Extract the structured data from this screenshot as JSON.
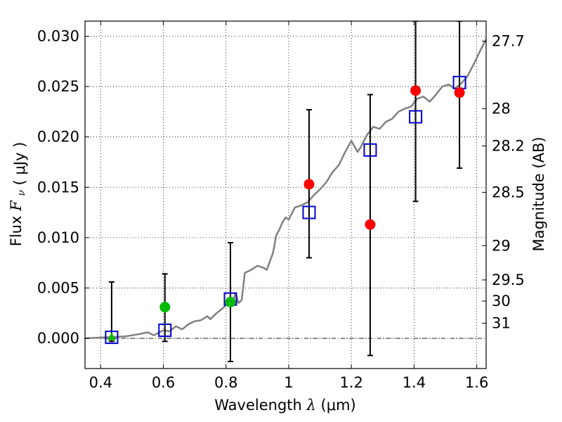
{
  "chart_data": {
    "type": "scatter",
    "xlabel": {
      "prefix": "Wavelength",
      "symbol": "λ",
      "unit": "(μm)"
    },
    "ylabel": {
      "prefix": "Flux",
      "symbol": "F",
      "subscript": "ν",
      "unit": "( μJy )"
    },
    "y2label": "Magnitude (AB)",
    "xlim": [
      0.35,
      1.63
    ],
    "ylim": [
      -0.003,
      0.0315
    ],
    "grid": true,
    "xticks": [
      {
        "value": 0.4,
        "label": "0.4"
      },
      {
        "value": 0.6,
        "label": "0.6"
      },
      {
        "value": 0.8,
        "label": "0.8"
      },
      {
        "value": 1.0,
        "label": "1"
      },
      {
        "value": 1.2,
        "label": "1.2"
      },
      {
        "value": 1.4,
        "label": "1.4"
      },
      {
        "value": 1.6,
        "label": "1.6"
      }
    ],
    "yticks": [
      {
        "value": 0.0,
        "label": "0.000"
      },
      {
        "value": 0.005,
        "label": "0.005"
      },
      {
        "value": 0.01,
        "label": "0.010"
      },
      {
        "value": 0.015,
        "label": "0.015"
      },
      {
        "value": 0.02,
        "label": "0.020"
      },
      {
        "value": 0.025,
        "label": "0.025"
      },
      {
        "value": 0.03,
        "label": "0.030"
      }
    ],
    "mag_ticks": [
      {
        "value": 0.0295,
        "label": "27.7"
      },
      {
        "value": 0.0228,
        "label": "28"
      },
      {
        "value": 0.0191,
        "label": "28.2"
      },
      {
        "value": 0.0145,
        "label": "28.5"
      },
      {
        "value": 0.0092,
        "label": "29"
      },
      {
        "value": 0.0058,
        "label": "29.5"
      },
      {
        "value": 0.0037,
        "label": "30"
      },
      {
        "value": 0.0015,
        "label": "31"
      }
    ],
    "series": [
      {
        "name": "template-sed",
        "kind": "line",
        "color": "#808080",
        "points": [
          [
            0.35,
            0.0
          ],
          [
            0.48,
            0.0002
          ],
          [
            0.52,
            0.0004
          ],
          [
            0.55,
            0.0006
          ],
          [
            0.57,
            0.0003
          ],
          [
            0.6,
            0.0008
          ],
          [
            0.62,
            0.0007
          ],
          [
            0.64,
            0.0012
          ],
          [
            0.66,
            0.0009
          ],
          [
            0.68,
            0.0014
          ],
          [
            0.7,
            0.0017
          ],
          [
            0.72,
            0.0018
          ],
          [
            0.74,
            0.0022
          ],
          [
            0.75,
            0.0019
          ],
          [
            0.77,
            0.0025
          ],
          [
            0.79,
            0.003
          ],
          [
            0.8,
            0.0033
          ],
          [
            0.81,
            0.0038
          ],
          [
            0.82,
            0.0032
          ],
          [
            0.83,
            0.0045
          ],
          [
            0.84,
            0.0035
          ],
          [
            0.85,
            0.0038
          ],
          [
            0.86,
            0.0065
          ],
          [
            0.88,
            0.0068
          ],
          [
            0.9,
            0.0072
          ],
          [
            0.92,
            0.007
          ],
          [
            0.93,
            0.0068
          ],
          [
            0.95,
            0.0085
          ],
          [
            0.96,
            0.0102
          ],
          [
            0.97,
            0.0108
          ],
          [
            0.98,
            0.0115
          ],
          [
            0.99,
            0.012
          ],
          [
            1.0,
            0.0118
          ],
          [
            1.02,
            0.013
          ],
          [
            1.04,
            0.0132
          ],
          [
            1.06,
            0.0135
          ],
          [
            1.08,
            0.0142
          ],
          [
            1.1,
            0.0148
          ],
          [
            1.12,
            0.0155
          ],
          [
            1.14,
            0.0165
          ],
          [
            1.16,
            0.0172
          ],
          [
            1.18,
            0.0185
          ],
          [
            1.2,
            0.0196
          ],
          [
            1.22,
            0.0185
          ],
          [
            1.23,
            0.019
          ],
          [
            1.25,
            0.0202
          ],
          [
            1.27,
            0.021
          ],
          [
            1.29,
            0.0208
          ],
          [
            1.31,
            0.0215
          ],
          [
            1.33,
            0.0218
          ],
          [
            1.35,
            0.0225
          ],
          [
            1.37,
            0.0228
          ],
          [
            1.39,
            0.023
          ],
          [
            1.41,
            0.0238
          ],
          [
            1.43,
            0.024
          ],
          [
            1.45,
            0.0235
          ],
          [
            1.47,
            0.0242
          ],
          [
            1.49,
            0.025
          ],
          [
            1.51,
            0.0252
          ],
          [
            1.53,
            0.0248
          ],
          [
            1.55,
            0.0253
          ],
          [
            1.57,
            0.026
          ],
          [
            1.59,
            0.0272
          ],
          [
            1.61,
            0.0285
          ],
          [
            1.63,
            0.0297
          ]
        ]
      },
      {
        "name": "model-photometry",
        "kind": "open-square",
        "color": "#0000cc",
        "points": [
          [
            0.435,
            0.0001
          ],
          [
            0.605,
            0.0008
          ],
          [
            0.814,
            0.0039
          ],
          [
            1.065,
            0.0125
          ],
          [
            1.26,
            0.0187
          ],
          [
            1.405,
            0.022
          ],
          [
            1.545,
            0.0254
          ]
        ]
      },
      {
        "name": "observed-flux-green",
        "kind": "filled-circle",
        "color": "#00bb00",
        "points": [
          {
            "x": 0.435,
            "y": 0.0001,
            "ylow": -0.0003,
            "yhigh": 0.0056,
            "marker": "triangle"
          },
          {
            "x": 0.605,
            "y": 0.0031,
            "ylow": -0.0003,
            "yhigh": 0.0064
          },
          {
            "x": 0.814,
            "y": 0.0036,
            "ylow": -0.0023,
            "yhigh": 0.0095
          }
        ]
      },
      {
        "name": "observed-flux-red",
        "kind": "filled-circle",
        "color": "#ff0000",
        "points": [
          {
            "x": 1.065,
            "y": 0.0153,
            "ylow": 0.008,
            "yhigh": 0.0227
          },
          {
            "x": 1.26,
            "y": 0.0113,
            "ylow": -0.0017,
            "yhigh": 0.0242
          },
          {
            "x": 1.405,
            "y": 0.0246,
            "ylow": 0.0136,
            "yhigh": 0.0315
          },
          {
            "x": 1.545,
            "y": 0.0244,
            "ylow": 0.0169,
            "yhigh": 0.0315
          }
        ]
      }
    ]
  }
}
